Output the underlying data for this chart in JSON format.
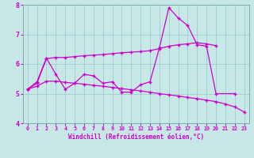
{
  "xlabel": "Windchill (Refroidissement éolien,°C)",
  "xlim": [
    -0.5,
    23.5
  ],
  "ylim": [
    4,
    8
  ],
  "yticks": [
    4,
    5,
    6,
    7,
    8
  ],
  "xticks": [
    0,
    1,
    2,
    3,
    4,
    5,
    6,
    7,
    8,
    9,
    10,
    11,
    12,
    13,
    14,
    15,
    16,
    17,
    18,
    19,
    20,
    21,
    22,
    23
  ],
  "bg_color": "#c8e8e8",
  "line_color": "#cc00cc",
  "grid_color": "#9ecece",
  "s1_x": [
    0,
    1,
    2,
    3,
    4,
    5,
    6,
    7,
    8,
    9,
    10,
    11,
    12,
    13,
    14,
    15,
    16,
    17,
    18,
    19,
    20,
    22
  ],
  "s1_y": [
    5.15,
    5.4,
    6.2,
    5.65,
    5.15,
    5.35,
    5.65,
    5.6,
    5.35,
    5.4,
    5.05,
    5.05,
    5.3,
    5.4,
    6.55,
    7.9,
    7.55,
    7.3,
    6.65,
    6.6,
    5.0,
    5.0
  ],
  "s2_x": [
    0,
    1,
    2,
    3,
    4,
    5,
    6,
    7,
    8,
    9,
    10,
    11,
    12,
    13,
    14,
    15,
    16,
    17,
    18,
    19,
    20
  ],
  "s2_y": [
    5.15,
    5.35,
    6.18,
    6.22,
    6.22,
    6.25,
    6.28,
    6.3,
    6.32,
    6.35,
    6.38,
    6.4,
    6.42,
    6.45,
    6.52,
    6.6,
    6.65,
    6.68,
    6.72,
    6.68,
    6.62
  ],
  "s3_x": [
    0,
    1,
    2,
    3,
    4,
    5,
    6,
    7,
    8,
    9,
    10,
    11,
    12,
    13,
    14,
    15,
    16,
    17,
    18,
    19,
    20,
    21,
    22,
    23
  ],
  "s3_y": [
    5.15,
    5.25,
    5.42,
    5.42,
    5.38,
    5.35,
    5.32,
    5.28,
    5.25,
    5.21,
    5.17,
    5.13,
    5.09,
    5.05,
    5.0,
    4.96,
    4.92,
    4.87,
    4.83,
    4.78,
    4.73,
    4.65,
    4.55,
    4.38
  ]
}
